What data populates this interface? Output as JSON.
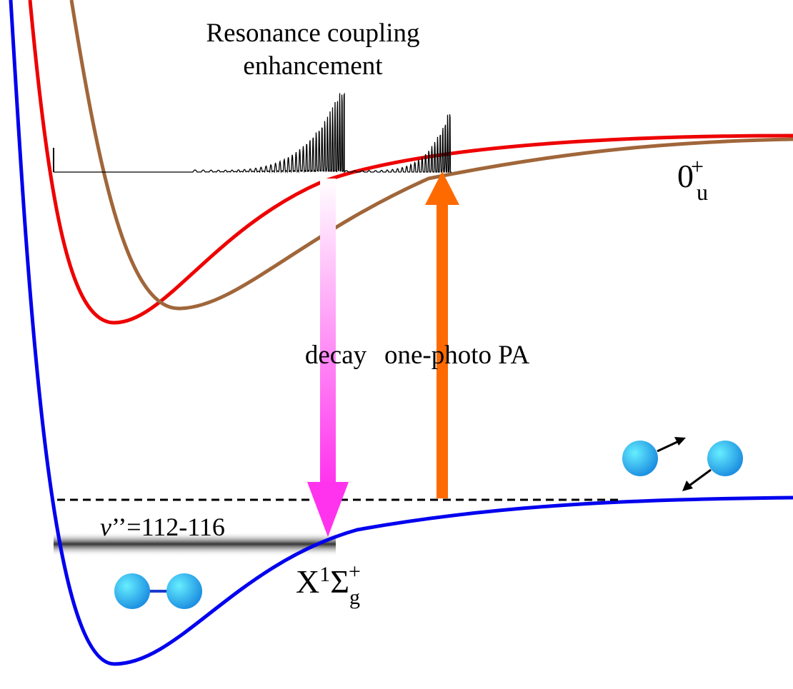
{
  "title": {
    "lines": [
      "Resonance coupling",
      "enhancement"
    ]
  },
  "arrows": {
    "decay": "decay",
    "excitation": "one-photo PA"
  },
  "level": {
    "symbol": "v",
    "text": "’’=112-116"
  },
  "states": {
    "excited": {
      "base": "0",
      "sub": "u",
      "sup": "+"
    },
    "ground": {
      "base": "X",
      "sup1": "1",
      "sigma": "Σ",
      "sub": "g",
      "sup": "+"
    }
  }
}
